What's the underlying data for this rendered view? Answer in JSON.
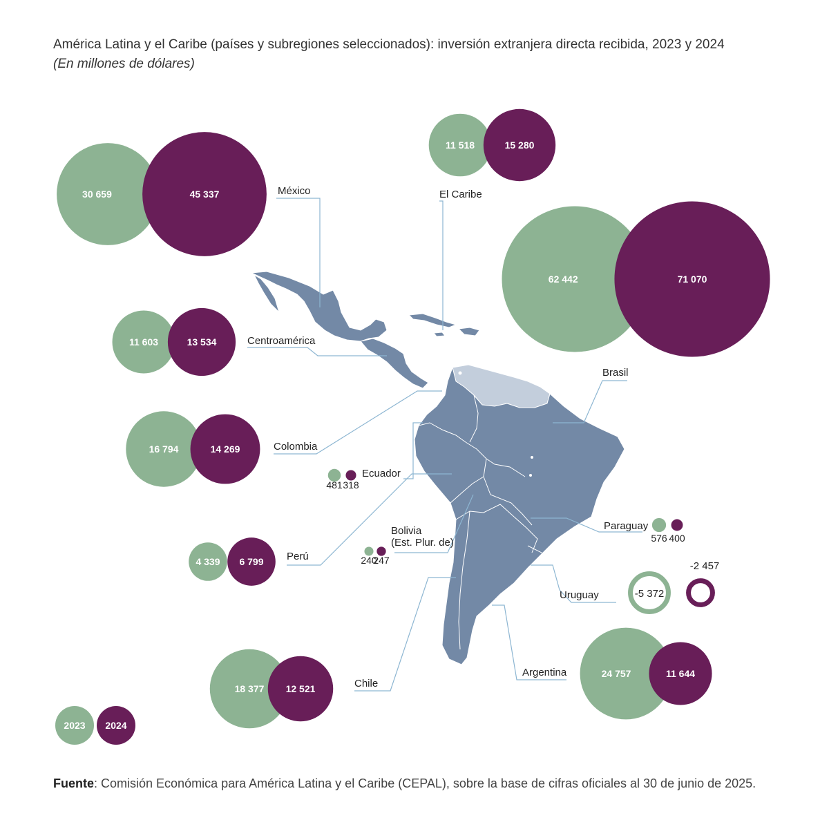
{
  "title": "América Latina y el Caribe (países y subregiones seleccionados): inversión extranjera directa recibida, 2023 y 2024",
  "subtitle": "(En millones de dólares)",
  "source": {
    "label": "Fuente",
    "text": ":  Comisión Económica para América Latina y el Caribe (CEPAL), sobre la base de cifras oficiales al 30 de junio de 2025."
  },
  "colors": {
    "y2023": "#8db393",
    "y2024": "#681e58",
    "map_main": "#7389a6",
    "map_light": "#c3cedc",
    "leader": "#8db6d2",
    "label": "#222222"
  },
  "legend": [
    "2023",
    "2024"
  ],
  "chart_data": {
    "type": "bubble-map",
    "unit": "millones de dólares",
    "series": [
      {
        "name": "2023"
      },
      {
        "name": "2024"
      }
    ],
    "entries": [
      {
        "id": "mexico",
        "name": "México",
        "v2023": 30659,
        "v2024": 45337,
        "t2023": "30 659",
        "t2024": "45 337"
      },
      {
        "id": "caribe",
        "name": "El Caribe",
        "v2023": 11518,
        "v2024": 15280,
        "t2023": "11 518",
        "t2024": "15 280"
      },
      {
        "id": "brasil",
        "name": "Brasil",
        "v2023": 62442,
        "v2024": 71070,
        "t2023": "62 442",
        "t2024": "71 070"
      },
      {
        "id": "centroamerica",
        "name": "Centroamérica",
        "v2023": 11603,
        "v2024": 13534,
        "t2023": "11 603",
        "t2024": "13 534"
      },
      {
        "id": "colombia",
        "name": "Colombia",
        "v2023": 16794,
        "v2024": 14269,
        "t2023": "16 794",
        "t2024": "14 269"
      },
      {
        "id": "ecuador",
        "name": "Ecuador",
        "v2023": 481,
        "v2024": 318,
        "t2023": "481",
        "t2024": "318"
      },
      {
        "id": "peru",
        "name": "Perú",
        "v2023": 4339,
        "v2024": 6799,
        "t2023": "4 339",
        "t2024": "6 799"
      },
      {
        "id": "bolivia",
        "name": [
          "Bolivia",
          "(Est. Plur. de)"
        ],
        "v2023": 240,
        "v2024": 247,
        "t2023": "240",
        "t2024": "247"
      },
      {
        "id": "paraguay",
        "name": "Paraguay",
        "v2023": 576,
        "v2024": 400,
        "t2023": "576",
        "t2024": "400"
      },
      {
        "id": "uruguay",
        "name": "Uruguay",
        "v2023": -5372,
        "v2024": -2457,
        "t2023": "-5 372",
        "t2024": "-2 457"
      },
      {
        "id": "chile",
        "name": "Chile",
        "v2023": 18377,
        "v2024": 12521,
        "t2023": "18 377",
        "t2024": "12 521"
      },
      {
        "id": "argentina",
        "name": "Argentina",
        "v2023": 24757,
        "v2024": 11644,
        "t2023": "24 757",
        "t2024": "11 644"
      }
    ]
  }
}
